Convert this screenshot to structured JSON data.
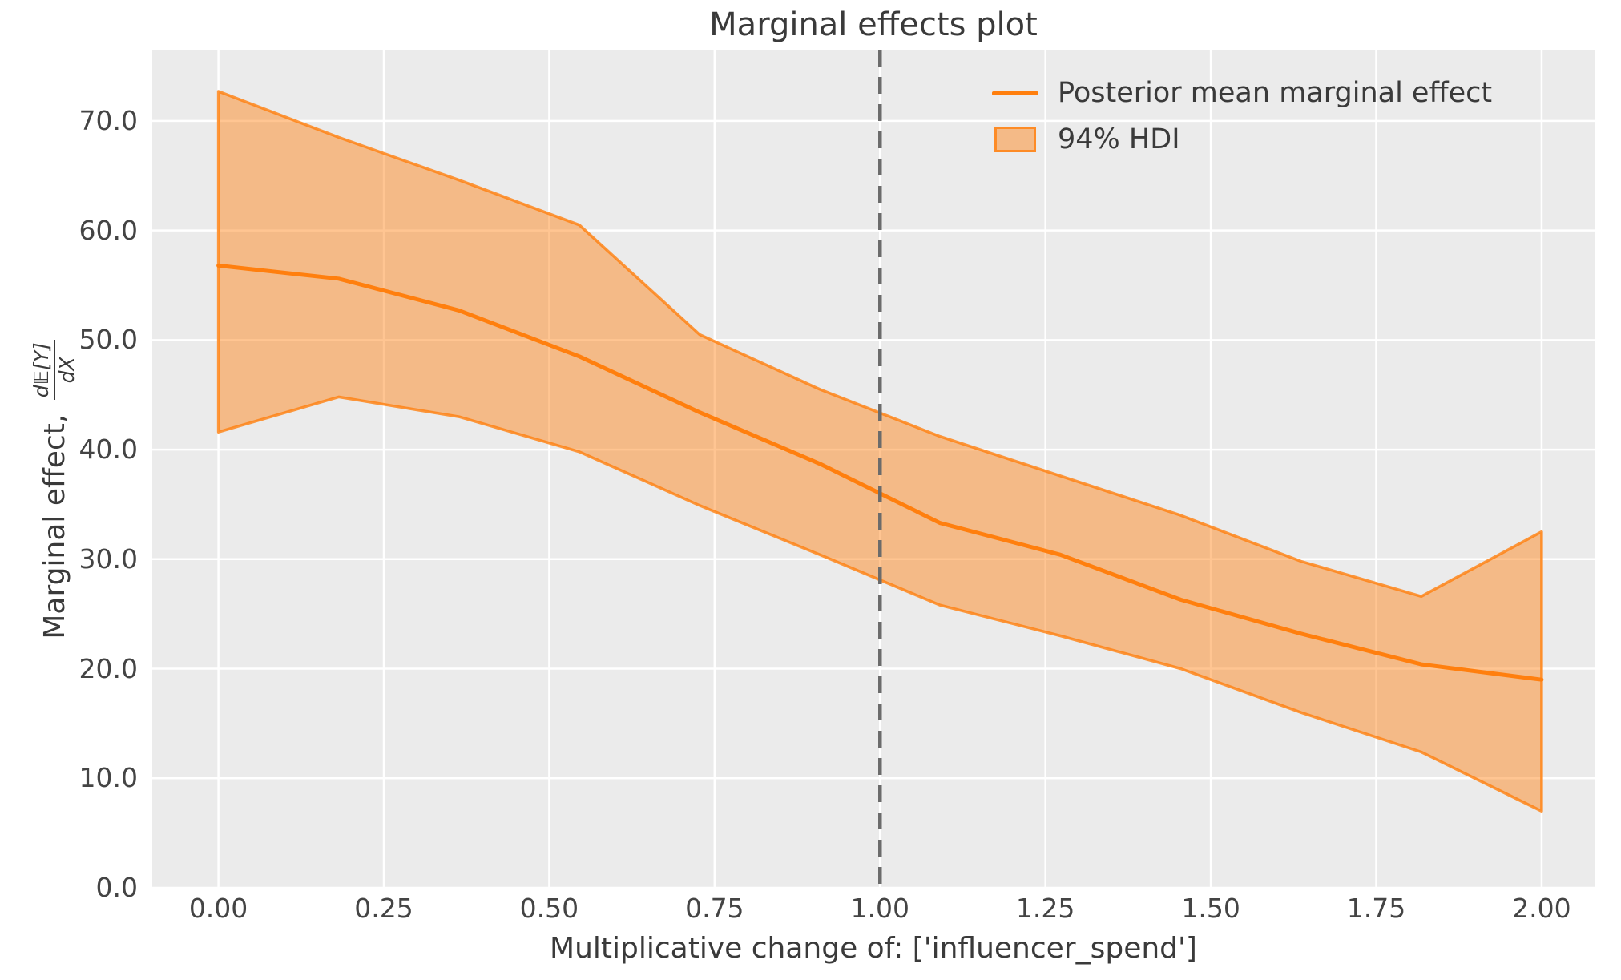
{
  "figure": {
    "title": "Marginal effects plot"
  },
  "axes": {
    "xlabel": "Multiplicative change of: ['influencer_spend']",
    "ylabel_prefix": "Marginal effect, ",
    "ylabel_frac_num": "d𝔼[Y]",
    "ylabel_frac_den": "dX",
    "xlim": [
      -0.1,
      2.08
    ],
    "ylim": [
      0,
      76.5
    ],
    "x_ticks": [
      {
        "v": 0.0,
        "label": "0.00"
      },
      {
        "v": 0.25,
        "label": "0.25"
      },
      {
        "v": 0.5,
        "label": "0.50"
      },
      {
        "v": 0.75,
        "label": "0.75"
      },
      {
        "v": 1.0,
        "label": "1.00"
      },
      {
        "v": 1.25,
        "label": "1.25"
      },
      {
        "v": 1.5,
        "label": "1.50"
      },
      {
        "v": 1.75,
        "label": "1.75"
      },
      {
        "v": 2.0,
        "label": "2.00"
      }
    ],
    "y_ticks": [
      {
        "v": 0,
        "label": "0.0"
      },
      {
        "v": 10,
        "label": "10.0"
      },
      {
        "v": 20,
        "label": "20.0"
      },
      {
        "v": 30,
        "label": "30.0"
      },
      {
        "v": 40,
        "label": "40.0"
      },
      {
        "v": 50,
        "label": "50.0"
      },
      {
        "v": 60,
        "label": "60.0"
      },
      {
        "v": 70,
        "label": "70.0"
      }
    ]
  },
  "legend": {
    "items": [
      {
        "type": "line",
        "label": "Posterior mean marginal effect"
      },
      {
        "type": "patch",
        "label": "94% HDI"
      }
    ]
  },
  "colors": {
    "accent": "#ff7f0e",
    "band_fill": "rgba(255,127,14,0.45)",
    "band_edge": "rgba(255,127,14,0.8)",
    "axes_bg": "#ebebeb",
    "grid": "#ffffff",
    "ref_line": "#6b6b6b",
    "text": "#3a3a3a",
    "tick_text": "#444444"
  },
  "chart_data": {
    "type": "line",
    "title": "Marginal effects plot",
    "xlabel": "Multiplicative change of: ['influencer_spend']",
    "ylabel": "Marginal effect, dE[Y]/dX",
    "x": [
      0.0,
      0.1818,
      0.3636,
      0.5455,
      0.7273,
      0.9091,
      1.0909,
      1.2727,
      1.4545,
      1.6364,
      1.8182,
      2.0
    ],
    "series": [
      {
        "name": "Posterior mean marginal effect",
        "values": [
          56.8,
          55.6,
          52.7,
          48.5,
          43.4,
          38.7,
          33.3,
          30.4,
          26.3,
          23.2,
          20.4,
          19.0
        ]
      },
      {
        "name": "94% HDI lower",
        "values": [
          41.6,
          44.8,
          43.0,
          39.8,
          34.9,
          30.4,
          25.8,
          23.0,
          20.0,
          16.0,
          12.4,
          7.0
        ]
      },
      {
        "name": "94% HDI upper",
        "values": [
          72.7,
          68.5,
          64.6,
          60.5,
          50.5,
          45.5,
          41.2,
          37.6,
          34.0,
          29.8,
          26.6,
          32.5
        ]
      }
    ],
    "hdi_label": "94% HDI",
    "reference_line_x": 1.0,
    "xlim": [
      -0.1,
      2.08
    ],
    "ylim": [
      0,
      76.5
    ],
    "grid": true,
    "legend_position": "upper right"
  }
}
